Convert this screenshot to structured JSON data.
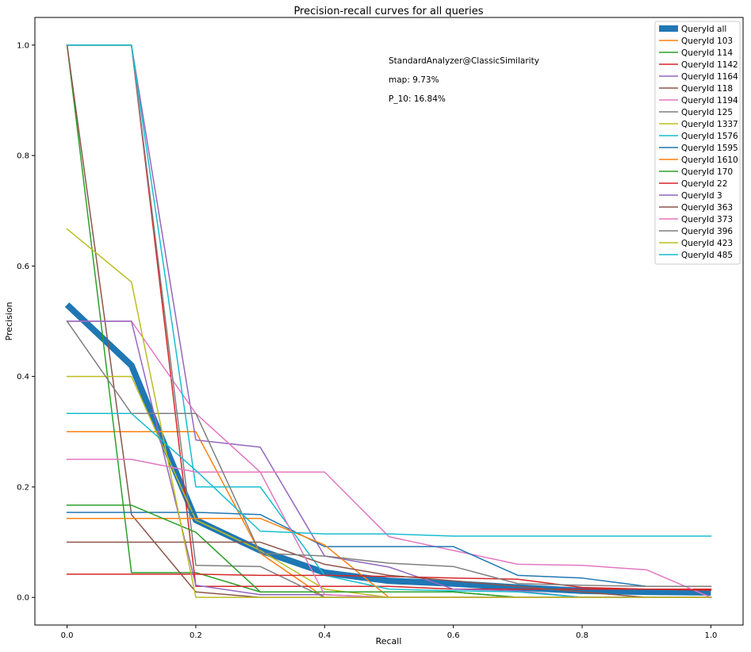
{
  "chart_data": {
    "type": "line",
    "title": "Precision-recall curves for all queries",
    "xlabel": "Recall",
    "ylabel": "Precision",
    "xlim": [
      -0.05,
      1.05
    ],
    "ylim": [
      -0.05,
      1.05
    ],
    "xticks": [
      "0.0",
      "0.2",
      "0.4",
      "0.6",
      "0.8",
      "1.0"
    ],
    "yticks": [
      "0.0",
      "0.2",
      "0.4",
      "0.6",
      "0.8",
      "1.0"
    ],
    "grid": false,
    "legend_position": "top-right",
    "annotations": [
      "StandardAnalyzer@ClassicSimilarity",
      "map: 9.73%",
      "P_10: 16.84%"
    ],
    "x": [
      0.0,
      0.1,
      0.2,
      0.3,
      0.4,
      0.5,
      0.6,
      0.7,
      0.8,
      0.9,
      1.0
    ],
    "series": [
      {
        "name": "QueryId all",
        "color": "#1f77b4",
        "thick": true,
        "values": [
          0.53,
          0.42,
          0.14,
          0.085,
          0.045,
          0.03,
          0.025,
          0.018,
          0.012,
          0.01,
          0.009
        ]
      },
      {
        "name": "QueryId 103",
        "color": "#ff7f0e",
        "values": [
          0.3,
          0.3,
          0.3,
          0.08,
          0.0,
          0.0,
          0.0,
          0.0,
          0.0,
          0.0,
          0.0
        ]
      },
      {
        "name": "QueryId 114",
        "color": "#2ca02c",
        "values": [
          1.0,
          0.045,
          0.045,
          0.01,
          0.01,
          0.01,
          0.01,
          0.0,
          0.0,
          0.0,
          0.0
        ]
      },
      {
        "name": "QueryId 1142",
        "color": "#d62728",
        "values": [
          1.0,
          1.0,
          0.02,
          0.02,
          0.02,
          0.02,
          0.015,
          0.015,
          0.015,
          0.015,
          0.015
        ]
      },
      {
        "name": "QueryId 1164",
        "color": "#9467bd",
        "values": [
          1.0,
          1.0,
          0.285,
          0.272,
          0.075,
          0.055,
          0.015,
          0.012,
          0.0,
          0.0,
          0.0
        ]
      },
      {
        "name": "QueryId 118",
        "color": "#8c564b",
        "values": [
          1.0,
          0.15,
          0.01,
          0.0,
          0.0,
          0.0,
          0.0,
          0.0,
          0.0,
          0.0,
          0.0
        ]
      },
      {
        "name": "QueryId 1194",
        "color": "#e377c2",
        "values": [
          0.5,
          0.5,
          0.333,
          0.227,
          0.227,
          0.11,
          0.085,
          0.06,
          0.058,
          0.05,
          0.0
        ]
      },
      {
        "name": "QueryId 125",
        "color": "#7f7f7f",
        "values": [
          1.0,
          1.0,
          0.058,
          0.056,
          0.0,
          0.0,
          0.0,
          0.0,
          0.0,
          0.0,
          0.0
        ]
      },
      {
        "name": "QueryId 1337",
        "color": "#bcbd22",
        "values": [
          0.4,
          0.4,
          0.14,
          0.085,
          0.015,
          0.0,
          0.0,
          0.0,
          0.0,
          0.0,
          0.0
        ]
      },
      {
        "name": "QueryId 1576",
        "color": "#17becf",
        "values": [
          1.0,
          1.0,
          0.2,
          0.2,
          0.04,
          0.015,
          0.012,
          0.01,
          0.0,
          0.0,
          0.0
        ]
      },
      {
        "name": "QueryId 1595",
        "color": "#1f77b4",
        "values": [
          0.154,
          0.154,
          0.154,
          0.15,
          0.092,
          0.092,
          0.092,
          0.04,
          0.035,
          0.02,
          0.02
        ]
      },
      {
        "name": "QueryId 1610",
        "color": "#ff7f0e",
        "values": [
          0.143,
          0.143,
          0.143,
          0.143,
          0.095,
          0.0,
          0.0,
          0.0,
          0.0,
          0.0,
          0.0
        ]
      },
      {
        "name": "QueryId 170",
        "color": "#2ca02c",
        "values": [
          0.167,
          0.167,
          0.118,
          0.01,
          0.01,
          0.01,
          0.01,
          0.0,
          0.0,
          0.0,
          0.0
        ]
      },
      {
        "name": "QueryId 22",
        "color": "#d62728",
        "values": [
          0.042,
          0.042,
          0.042,
          0.04,
          0.04,
          0.038,
          0.035,
          0.033,
          0.018,
          0.015,
          0.013
        ]
      },
      {
        "name": "QueryId 3",
        "color": "#9467bd",
        "values": [
          0.5,
          0.5,
          0.022,
          0.005,
          0.005,
          0.0,
          0.0,
          0.0,
          0.0,
          0.0,
          0.0
        ]
      },
      {
        "name": "QueryId 363",
        "color": "#8c564b",
        "values": [
          0.1,
          0.1,
          0.1,
          0.1,
          0.06,
          0.04,
          0.03,
          0.02,
          0.01,
          0.0,
          0.0
        ]
      },
      {
        "name": "QueryId 373",
        "color": "#e377c2",
        "values": [
          0.25,
          0.25,
          0.227,
          0.227,
          0.005,
          0.0,
          0.0,
          0.0,
          0.0,
          0.0,
          0.0
        ]
      },
      {
        "name": "QueryId 396",
        "color": "#7f7f7f",
        "values": [
          0.5,
          0.333,
          0.333,
          0.08,
          0.075,
          0.062,
          0.056,
          0.025,
          0.022,
          0.02,
          0.02
        ]
      },
      {
        "name": "QueryId 423",
        "color": "#bcbd22",
        "values": [
          0.667,
          0.571,
          0.0,
          0.0,
          0.0,
          0.0,
          0.0,
          0.0,
          0.0,
          0.0,
          0.0
        ]
      },
      {
        "name": "QueryId 485",
        "color": "#17becf",
        "values": [
          0.333,
          0.333,
          0.23,
          0.12,
          0.115,
          0.115,
          0.111,
          0.111,
          0.111,
          0.111,
          0.111
        ]
      }
    ]
  }
}
